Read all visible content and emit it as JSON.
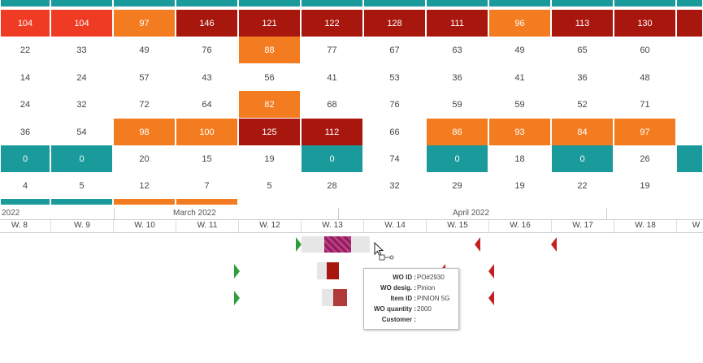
{
  "colors": {
    "teal": "#1a9a9a",
    "orange": "#f47c20",
    "dark_red": "#a8170e",
    "red": "#ef3b24",
    "white": "#ffffff",
    "green_marker": "#2e9e3c",
    "red_marker": "#c42020"
  },
  "heatmap": {
    "rows": [
      {
        "cells": [
          {
            "v": "104",
            "c": "red"
          },
          {
            "v": "104",
            "c": "red"
          },
          {
            "v": "97",
            "c": "orange"
          },
          {
            "v": "146",
            "c": "dark_red"
          },
          {
            "v": "121",
            "c": "dark_red"
          },
          {
            "v": "122",
            "c": "dark_red"
          },
          {
            "v": "128",
            "c": "dark_red"
          },
          {
            "v": "111",
            "c": "dark_red"
          },
          {
            "v": "96",
            "c": "orange"
          },
          {
            "v": "113",
            "c": "dark_red"
          },
          {
            "v": "130",
            "c": "dark_red"
          },
          {
            "v": "",
            "c": "dark_red"
          }
        ]
      },
      {
        "cells": [
          {
            "v": "22",
            "c": "white"
          },
          {
            "v": "33",
            "c": "white"
          },
          {
            "v": "49",
            "c": "white"
          },
          {
            "v": "76",
            "c": "white"
          },
          {
            "v": "88",
            "c": "orange"
          },
          {
            "v": "77",
            "c": "white"
          },
          {
            "v": "67",
            "c": "white"
          },
          {
            "v": "63",
            "c": "white"
          },
          {
            "v": "49",
            "c": "white"
          },
          {
            "v": "65",
            "c": "white"
          },
          {
            "v": "60",
            "c": "white"
          },
          {
            "v": "",
            "c": "white"
          }
        ]
      },
      {
        "cells": [
          {
            "v": "14",
            "c": "white"
          },
          {
            "v": "24",
            "c": "white"
          },
          {
            "v": "57",
            "c": "white"
          },
          {
            "v": "43",
            "c": "white"
          },
          {
            "v": "56",
            "c": "white"
          },
          {
            "v": "41",
            "c": "white"
          },
          {
            "v": "53",
            "c": "white"
          },
          {
            "v": "36",
            "c": "white"
          },
          {
            "v": "41",
            "c": "white"
          },
          {
            "v": "36",
            "c": "white"
          },
          {
            "v": "48",
            "c": "white"
          },
          {
            "v": "",
            "c": "white"
          }
        ]
      },
      {
        "cells": [
          {
            "v": "24",
            "c": "white"
          },
          {
            "v": "32",
            "c": "white"
          },
          {
            "v": "72",
            "c": "white"
          },
          {
            "v": "64",
            "c": "white"
          },
          {
            "v": "82",
            "c": "orange"
          },
          {
            "v": "68",
            "c": "white"
          },
          {
            "v": "76",
            "c": "white"
          },
          {
            "v": "59",
            "c": "white"
          },
          {
            "v": "59",
            "c": "white"
          },
          {
            "v": "52",
            "c": "white"
          },
          {
            "v": "71",
            "c": "white"
          },
          {
            "v": "",
            "c": "white"
          }
        ]
      },
      {
        "cells": [
          {
            "v": "36",
            "c": "white"
          },
          {
            "v": "54",
            "c": "white"
          },
          {
            "v": "98",
            "c": "orange"
          },
          {
            "v": "100",
            "c": "orange"
          },
          {
            "v": "125",
            "c": "dark_red"
          },
          {
            "v": "112",
            "c": "dark_red"
          },
          {
            "v": "66",
            "c": "white"
          },
          {
            "v": "86",
            "c": "orange"
          },
          {
            "v": "93",
            "c": "orange"
          },
          {
            "v": "84",
            "c": "orange"
          },
          {
            "v": "97",
            "c": "orange"
          },
          {
            "v": "",
            "c": "white"
          }
        ]
      },
      {
        "cells": [
          {
            "v": "0",
            "c": "teal"
          },
          {
            "v": "0",
            "c": "teal"
          },
          {
            "v": "20",
            "c": "white"
          },
          {
            "v": "15",
            "c": "white"
          },
          {
            "v": "19",
            "c": "white"
          },
          {
            "v": "0",
            "c": "teal"
          },
          {
            "v": "74",
            "c": "white"
          },
          {
            "v": "0",
            "c": "teal"
          },
          {
            "v": "18",
            "c": "white"
          },
          {
            "v": "0",
            "c": "teal"
          },
          {
            "v": "26",
            "c": "white"
          },
          {
            "v": "",
            "c": "teal"
          }
        ]
      },
      {
        "cells": [
          {
            "v": "4",
            "c": "white"
          },
          {
            "v": "5",
            "c": "white"
          },
          {
            "v": "12",
            "c": "white"
          },
          {
            "v": "7",
            "c": "white"
          },
          {
            "v": "5",
            "c": "white"
          },
          {
            "v": "28",
            "c": "white"
          },
          {
            "v": "32",
            "c": "white"
          },
          {
            "v": "29",
            "c": "white"
          },
          {
            "v": "19",
            "c": "white"
          },
          {
            "v": "22",
            "c": "white"
          },
          {
            "v": "19",
            "c": "white"
          },
          {
            "v": "",
            "c": "white"
          }
        ]
      }
    ],
    "top_strip": [
      "teal",
      "teal",
      "teal",
      "teal",
      "teal",
      "teal",
      "teal",
      "teal",
      "teal",
      "teal",
      "teal",
      "teal"
    ],
    "bottom_strip": [
      "teal",
      "teal",
      "orange",
      "orange",
      "white",
      "white",
      "white",
      "white",
      "white",
      "white",
      "white",
      "white"
    ]
  },
  "timeline": {
    "months": [
      {
        "label": "2022"
      },
      {
        "label": "March 2022"
      },
      {
        "label": "April 2022"
      }
    ],
    "weeks": [
      "W. 8",
      "W. 9",
      "W. 10",
      "W. 11",
      "W. 12",
      "W. 13",
      "W. 14",
      "W. 15",
      "W. 16",
      "W. 17",
      "W. 18",
      "W"
    ]
  },
  "tooltip": {
    "rows": [
      {
        "key": "WO ID :",
        "value": "PO#2930"
      },
      {
        "key": "WO desig. :",
        "value": "Pinion"
      },
      {
        "key": "Item ID :",
        "value": "PINION 5G"
      },
      {
        "key": "WO quantity :",
        "value": "2000"
      },
      {
        "key": "Customer :",
        "value": ""
      }
    ]
  }
}
